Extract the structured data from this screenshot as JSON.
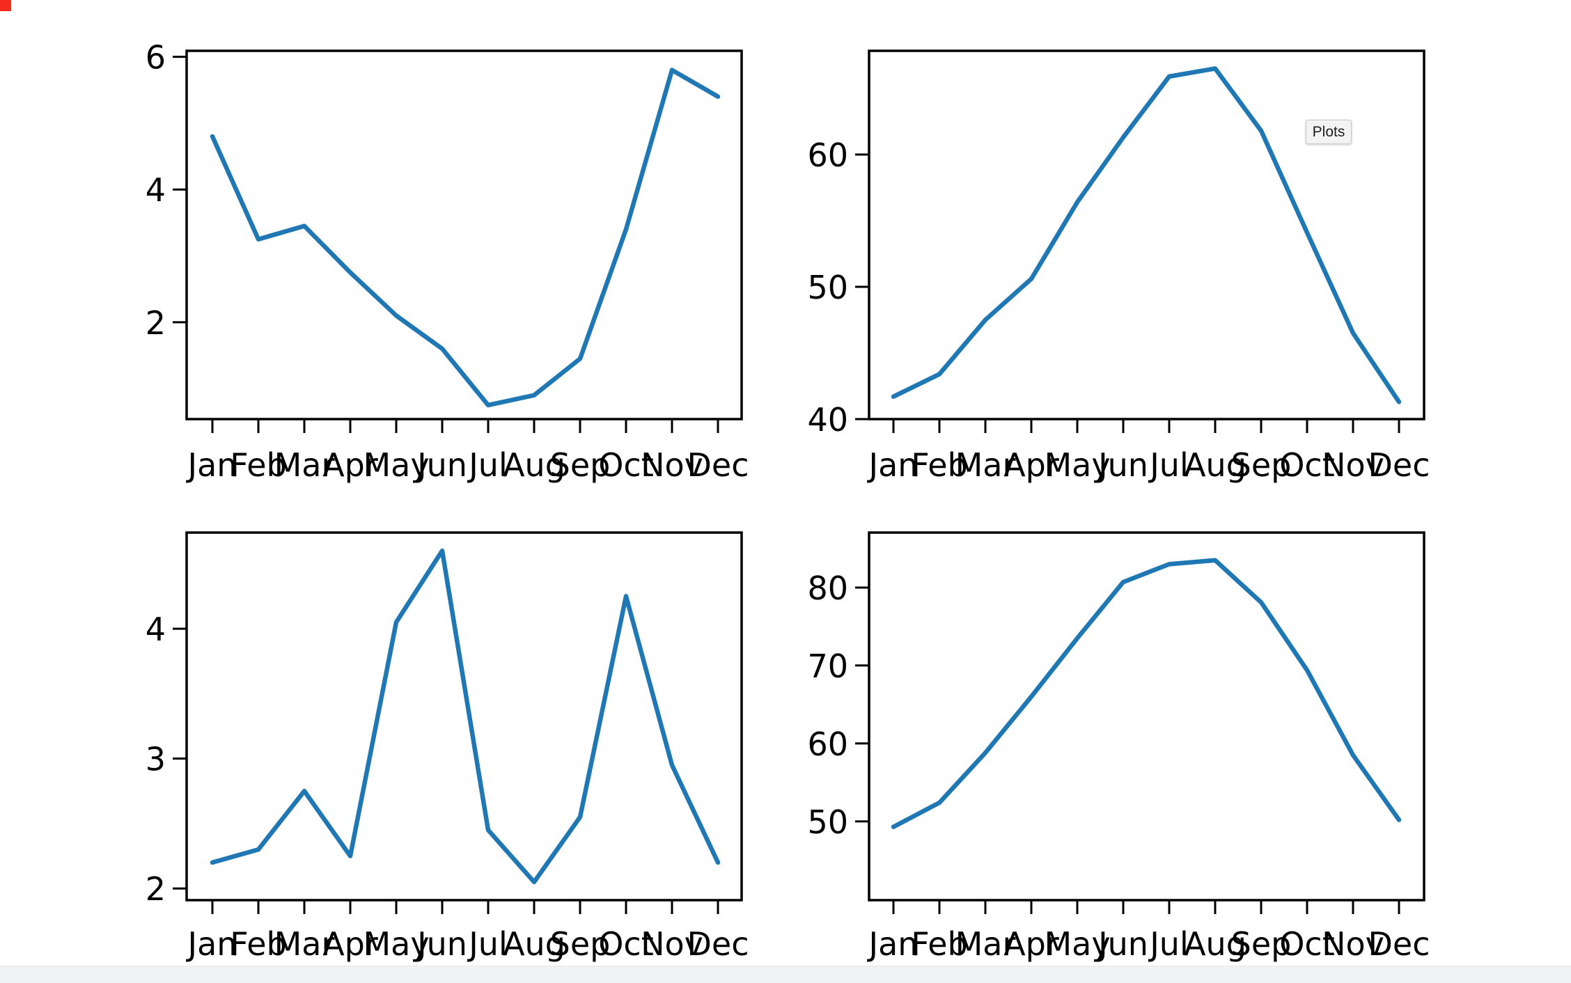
{
  "tooltip": {
    "text": "Plots"
  },
  "colors": {
    "line": "#1f77b4",
    "spine": "#000000",
    "tick_label": "#000000",
    "tooltip_bg": "#f3f3f3",
    "tooltip_border": "#c9c9c9",
    "corner_indicator": "#f42b1d",
    "background": "#ffffff"
  },
  "chart_data": [
    {
      "id": "top-left",
      "type": "line",
      "title": "",
      "xlabel": "",
      "ylabel": "",
      "categories": [
        "Jan",
        "Feb",
        "Mar",
        "Apr",
        "May",
        "Jun",
        "Jul",
        "Aug",
        "Sep",
        "Oct",
        "Nov",
        "Dec"
      ],
      "values": [
        4.8,
        3.25,
        3.45,
        2.75,
        2.1,
        1.6,
        0.75,
        0.9,
        1.45,
        3.4,
        5.8,
        5.4
      ],
      "yticks": [
        2,
        4,
        6
      ],
      "ylim": [
        0.54,
        6.09
      ],
      "grid": false,
      "legend": "none"
    },
    {
      "id": "top-right",
      "type": "line",
      "title": "",
      "xlabel": "",
      "ylabel": "",
      "categories": [
        "Jan",
        "Feb",
        "Mar",
        "Apr",
        "May",
        "Jun",
        "Jul",
        "Aug",
        "Sep",
        "Oct",
        "Nov",
        "Dec"
      ],
      "values": [
        41.7,
        43.4,
        47.5,
        50.6,
        56.4,
        61.3,
        65.9,
        66.5,
        61.8,
        54.1,
        46.5,
        41.3
      ],
      "yticks": [
        40,
        50,
        60
      ],
      "ylim": [
        40.0,
        67.84
      ],
      "grid": false,
      "legend": "none"
    },
    {
      "id": "bottom-left",
      "type": "line",
      "title": "",
      "xlabel": "",
      "ylabel": "",
      "categories": [
        "Jan",
        "Feb",
        "Mar",
        "Apr",
        "May",
        "Jun",
        "Jul",
        "Aug",
        "Sep",
        "Oct",
        "Nov",
        "Dec"
      ],
      "values": [
        2.2,
        2.3,
        2.75,
        2.25,
        4.05,
        4.6,
        2.45,
        2.05,
        2.55,
        4.25,
        2.95,
        2.2
      ],
      "yticks": [
        2,
        3,
        4
      ],
      "ylim": [
        1.91,
        4.74
      ],
      "grid": false,
      "legend": "none"
    },
    {
      "id": "bottom-right",
      "type": "line",
      "title": "",
      "xlabel": "",
      "ylabel": "",
      "categories": [
        "Jan",
        "Feb",
        "Mar",
        "Apr",
        "May",
        "Jun",
        "Jul",
        "Aug",
        "Sep",
        "Oct",
        "Nov",
        "Dec"
      ],
      "values": [
        49.3,
        52.4,
        58.8,
        66.0,
        73.5,
        80.7,
        83.0,
        83.5,
        78.1,
        69.4,
        58.5,
        50.2
      ],
      "yticks": [
        50,
        60,
        70,
        80
      ],
      "ylim": [
        39.9,
        87.05
      ],
      "grid": false,
      "legend": "none"
    }
  ]
}
